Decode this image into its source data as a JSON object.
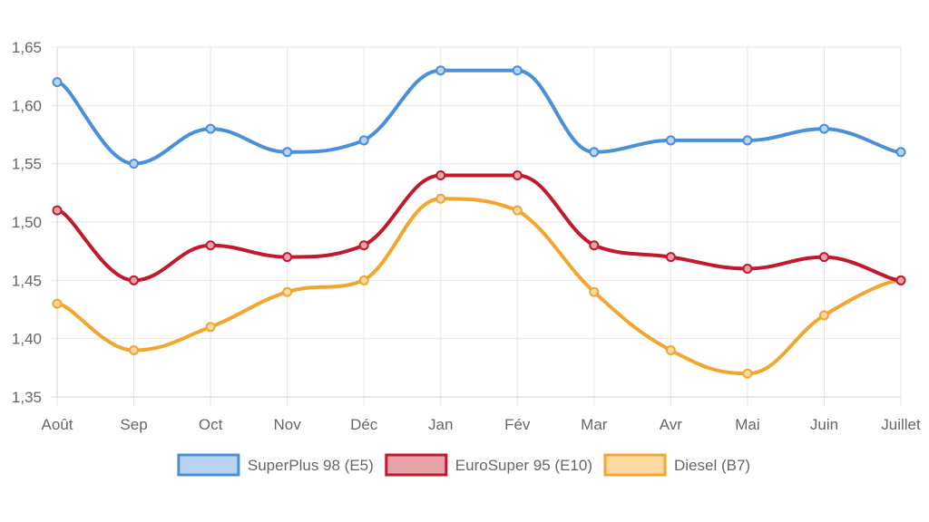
{
  "chart_data": {
    "type": "line",
    "categories": [
      "Août",
      "Sep",
      "Oct",
      "Nov",
      "Déc",
      "Jan",
      "Fév",
      "Mar",
      "Avr",
      "Mai",
      "Juin",
      "Juillet"
    ],
    "ylim": [
      1.35,
      1.65
    ],
    "yticks": [
      "1,35",
      "1,40",
      "1,45",
      "1,50",
      "1,55",
      "1,60",
      "1,65"
    ],
    "grid": true,
    "legend_position": "bottom",
    "series": [
      {
        "name": "SuperPlus 98 (E5)",
        "color": "#4A90D9",
        "fill": "#B9D4F2",
        "values": [
          1.62,
          1.55,
          1.58,
          1.56,
          1.57,
          1.63,
          1.63,
          1.56,
          1.57,
          1.57,
          1.58,
          1.56
        ]
      },
      {
        "name": "EuroSuper 95 (E10)",
        "color": "#C01A2C",
        "fill": "#E6A3AA",
        "values": [
          1.51,
          1.45,
          1.48,
          1.47,
          1.48,
          1.54,
          1.54,
          1.48,
          1.47,
          1.46,
          1.47,
          1.45
        ]
      },
      {
        "name": "Diesel (B7)",
        "color": "#F2A62F",
        "fill": "#FAD9A3",
        "values": [
          1.43,
          1.39,
          1.41,
          1.44,
          1.45,
          1.52,
          1.51,
          1.44,
          1.39,
          1.37,
          1.42,
          1.45
        ]
      }
    ]
  }
}
